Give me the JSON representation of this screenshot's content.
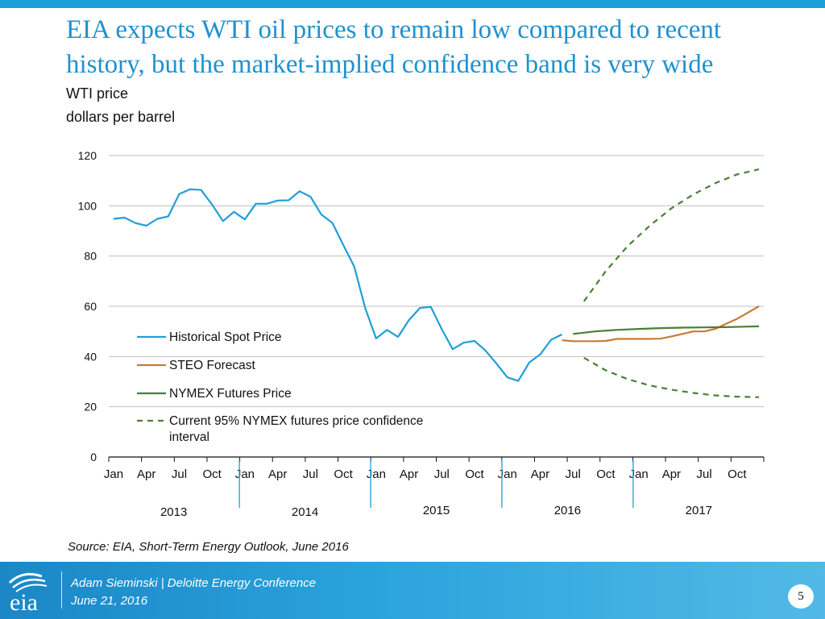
{
  "slide": {
    "title_line1": "EIA expects WTI oil prices to remain low compared to recent",
    "title_line2": "history, but the market-implied confidence band is very wide",
    "subtitle_line1": "WTI price",
    "subtitle_line2": "dollars per barrel",
    "source": "Source: EIA, Short-Term Energy Outlook, June 2016",
    "footer_line1": "Adam Sieminski | Deloitte Energy Conference",
    "footer_line2": "June 21, 2016",
    "page_number": "5",
    "logo_text": "eia"
  },
  "colors": {
    "title": "#1f91d0",
    "historical": "#1f9fd7",
    "steo": "#c97b32",
    "nymex": "#4b7f33",
    "band": "#4b7f33",
    "grid": "#bfbfbf"
  },
  "chart_data": {
    "type": "line",
    "ylim": [
      0,
      120
    ],
    "yticks": [
      0,
      20,
      40,
      60,
      80,
      100,
      120
    ],
    "x_index_range": [
      0,
      59
    ],
    "month_labels": [
      "Jan",
      "Apr",
      "Jul",
      "Oct",
      "Jan",
      "Apr",
      "Jul",
      "Oct",
      "Jan",
      "Apr",
      "Jul",
      "Oct",
      "Jan",
      "Apr",
      "Jul",
      "Oct",
      "Jan",
      "Apr",
      "Jul",
      "Oct"
    ],
    "month_label_indices": [
      0,
      3,
      6,
      9,
      12,
      15,
      18,
      21,
      24,
      27,
      30,
      33,
      36,
      39,
      42,
      45,
      48,
      51,
      54,
      57
    ],
    "year_labels": [
      "2013",
      "2014",
      "2015",
      "2016",
      "2017"
    ],
    "year_label_centers": [
      5.5,
      17.5,
      29.5,
      41.5,
      53.5
    ],
    "legend": [
      {
        "label": "Historical Spot Price",
        "style": "historical"
      },
      {
        "label": "STEO Forecast",
        "style": "steo"
      },
      {
        "label": "NYMEX Futures Price",
        "style": "nymex"
      },
      {
        "label": "Current 95% NYMEX futures price confidence",
        "label2": "interval",
        "style": "band"
      }
    ],
    "series": [
      {
        "name": "Historical Spot Price",
        "style": "historical",
        "x": [
          0,
          1,
          2,
          3,
          4,
          5,
          6,
          7,
          8,
          9,
          10,
          11,
          12,
          13,
          14,
          15,
          16,
          17,
          18,
          19,
          20,
          21,
          22,
          23,
          24,
          25,
          26,
          27,
          28,
          29,
          30,
          31,
          32,
          33,
          34,
          35,
          36,
          37,
          38,
          39,
          40,
          41
        ],
        "values": [
          94.8,
          95.3,
          93.1,
          92.1,
          94.8,
          95.8,
          104.7,
          106.6,
          106.3,
          100.5,
          93.9,
          97.6,
          94.6,
          100.8,
          100.8,
          102.1,
          102.2,
          105.8,
          103.6,
          96.5,
          93.2,
          84.4,
          75.8,
          59.3,
          47.2,
          50.6,
          47.8,
          54.5,
          59.3,
          59.8,
          50.9,
          42.9,
          45.5,
          46.2,
          42.4,
          37.2,
          31.7,
          30.3,
          37.6,
          40.8,
          46.7,
          48.8
        ]
      },
      {
        "name": "STEO Forecast",
        "style": "steo",
        "x": [
          41,
          42,
          43,
          44,
          45,
          46,
          47,
          48,
          49,
          50,
          51,
          52,
          53,
          54,
          55,
          56,
          57,
          58,
          59
        ],
        "values": [
          46.5,
          46.1,
          46.1,
          46.1,
          46.2,
          47.0,
          47.0,
          47.0,
          47.0,
          47.1,
          48.0,
          49.0,
          50.0,
          50.0,
          51.0,
          53.0,
          55.0,
          57.5,
          60.0
        ]
      },
      {
        "name": "NYMEX Futures Price",
        "style": "nymex",
        "x": [
          42,
          44,
          46,
          48,
          50,
          52,
          54,
          56,
          58,
          59
        ],
        "values": [
          49.0,
          50.0,
          50.6,
          51.0,
          51.3,
          51.5,
          51.6,
          51.7,
          51.9,
          52.0
        ]
      },
      {
        "name": "95% Confidence Upper",
        "style": "band",
        "x": [
          43,
          45,
          47,
          49,
          51,
          53,
          55,
          57,
          59
        ],
        "values": [
          62.0,
          74.0,
          84.0,
          92.0,
          99.0,
          104.5,
          109.0,
          112.5,
          114.5
        ]
      },
      {
        "name": "95% Confidence Lower",
        "style": "band",
        "x": [
          43,
          45,
          47,
          49,
          51,
          53,
          55,
          57,
          59
        ],
        "values": [
          39.5,
          34.5,
          31.0,
          28.5,
          26.8,
          25.5,
          24.5,
          24.0,
          23.8
        ]
      }
    ]
  }
}
